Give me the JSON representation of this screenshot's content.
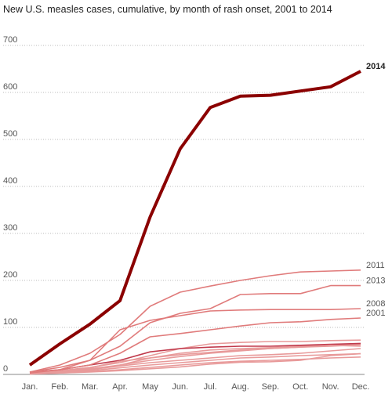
{
  "chart_data": {
    "type": "line",
    "title": "New U.S. measles cases, cumulative, by month of rash onset, 2001 to 2014",
    "categories": [
      "Jan.",
      "Feb.",
      "Mar.",
      "Apr.",
      "May",
      "Jun.",
      "Jul.",
      "Aug.",
      "Sep.",
      "Oct.",
      "Nov.",
      "Dec."
    ],
    "ylim": [
      0,
      700
    ],
    "yticks": [
      0,
      100,
      200,
      300,
      400,
      500,
      600,
      700
    ],
    "grid": true,
    "series": [
      {
        "color": "#e89a9a",
        "values": [
          2,
          5,
          10,
          20,
          35,
          45,
          52,
          55,
          57,
          60,
          62,
          65
        ]
      },
      {
        "color": "#e89a9a",
        "values": [
          3,
          8,
          15,
          25,
          40,
          55,
          65,
          68,
          70,
          70,
          72,
          73
        ]
      },
      {
        "color": "#e89a9a",
        "values": [
          1,
          4,
          10,
          18,
          25,
          30,
          35,
          40,
          42,
          45,
          50,
          55
        ]
      },
      {
        "color": "#e89a9a",
        "values": [
          2,
          5,
          12,
          20,
          30,
          38,
          45,
          50,
          55,
          58,
          60,
          63
        ]
      },
      {
        "color": "#e89a9a",
        "values": [
          2,
          4,
          8,
          14,
          20,
          25,
          30,
          35,
          37,
          40,
          42,
          44
        ]
      },
      {
        "color": "#e89a9a",
        "values": [
          1,
          3,
          6,
          10,
          15,
          20,
          25,
          28,
          30,
          32,
          35,
          37
        ]
      },
      {
        "color": "#c0394b",
        "values": [
          5,
          10,
          20,
          30,
          48,
          55,
          58,
          60,
          60,
          62,
          64,
          66
        ]
      },
      {
        "color": "#e89a9a",
        "values": [
          3,
          6,
          14,
          28,
          35,
          42,
          47,
          52,
          55,
          58,
          62,
          60
        ]
      },
      {
        "color": "#e89a9a",
        "values": [
          1,
          3,
          5,
          8,
          12,
          16,
          22,
          26,
          27,
          30,
          40,
          44
        ]
      },
      {
        "name": "2001",
        "color": "#e07b7b",
        "values": [
          4,
          10,
          20,
          45,
          80,
          87,
          95,
          103,
          110,
          112,
          117,
          120
        ]
      },
      {
        "name": "2008",
        "color": "#e07b7b",
        "values": [
          5,
          15,
          30,
          95,
          115,
          125,
          135,
          137,
          138,
          138,
          138,
          140
        ]
      },
      {
        "name": "2013",
        "color": "#e07b7b",
        "values": [
          3,
          10,
          30,
          60,
          110,
          130,
          140,
          170,
          172,
          172,
          189,
          189
        ]
      },
      {
        "name": "2011",
        "color": "#e07b7b",
        "values": [
          5,
          20,
          45,
          85,
          145,
          175,
          188,
          200,
          210,
          218,
          220,
          222
        ]
      },
      {
        "name": "2014",
        "color": "#8b0000",
        "values": [
          20,
          65,
          107,
          157,
          335,
          480,
          568,
          592,
          594,
          603,
          612,
          645
        ]
      }
    ]
  }
}
